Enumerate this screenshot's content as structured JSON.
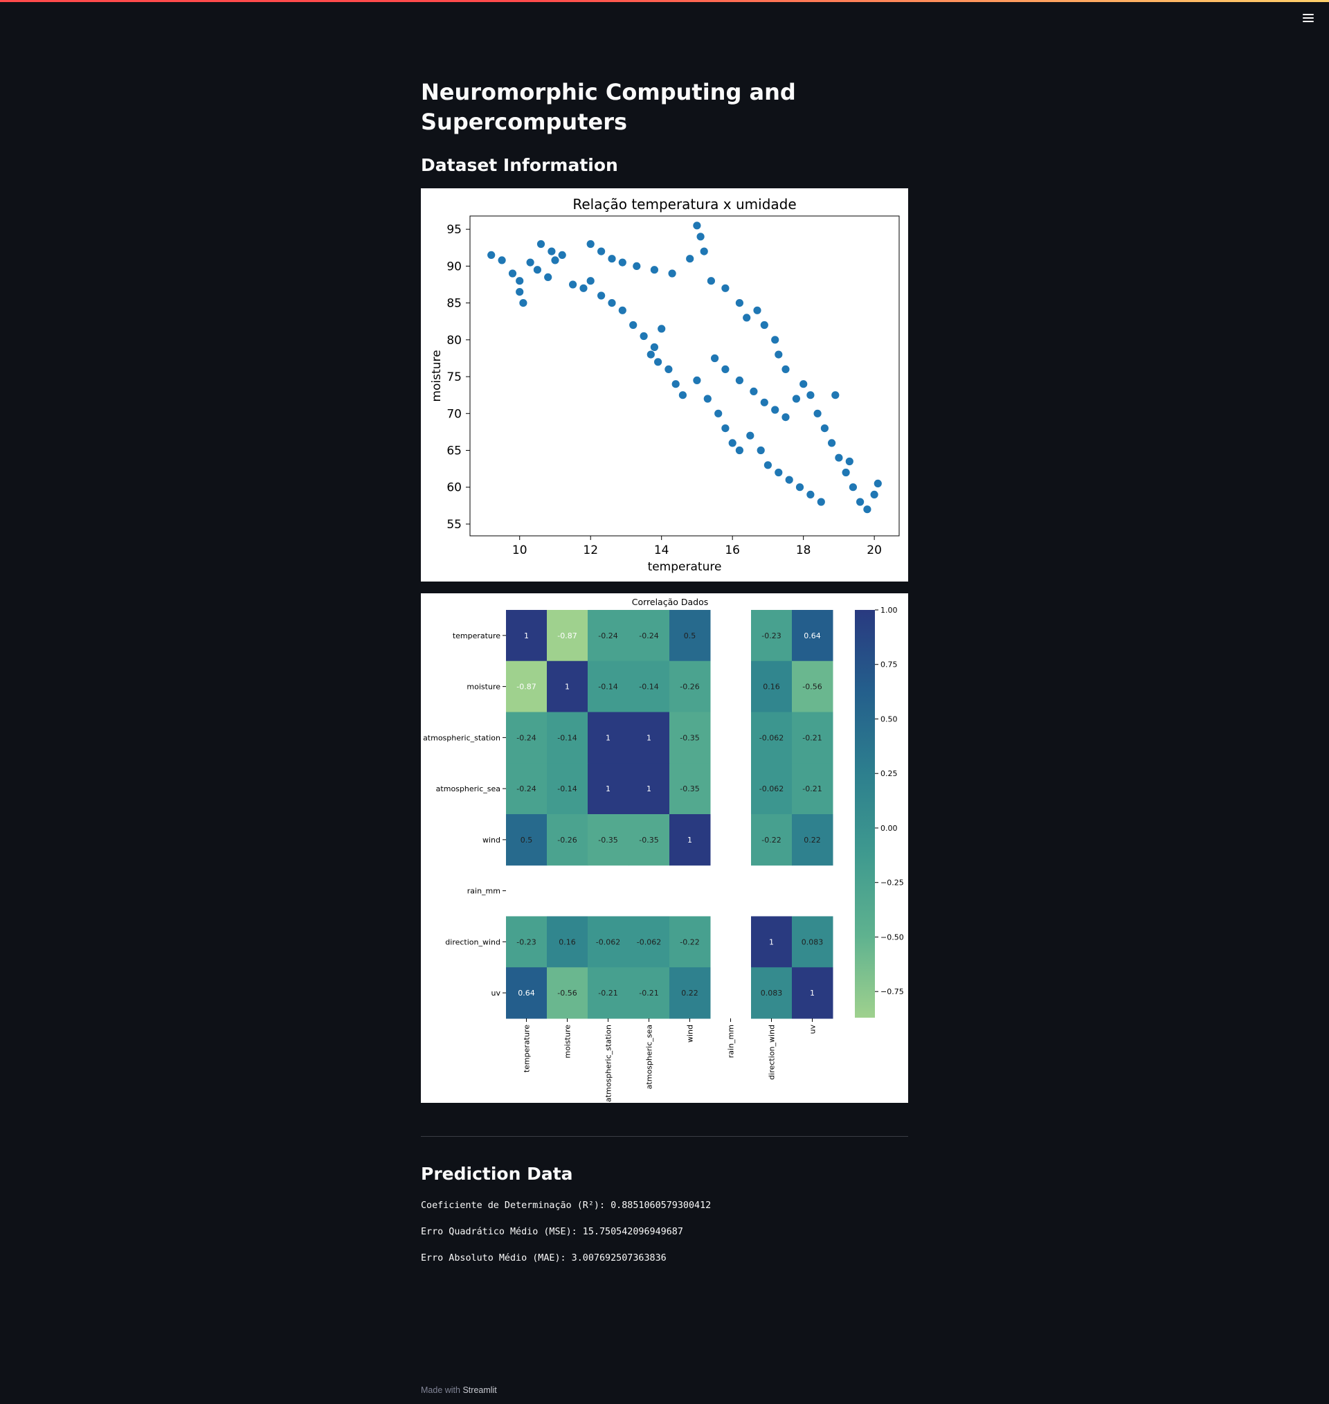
{
  "header": {
    "menu_icon": "hamburger-menu-icon",
    "accent_gradient": [
      "#ff4b4b",
      "#ffd16a"
    ]
  },
  "page": {
    "title": "Neuromorphic Computing and Supercomputers",
    "dataset_heading": "Dataset Information",
    "prediction_heading": "Prediction Data"
  },
  "metrics": {
    "r2": "Coeficiente de Determinação (R²): 0.8851060579300412",
    "mse": "Erro Quadrático Médio (MSE): 15.750542096949687",
    "mae": "Erro Absoluto Médio (MAE): 3.007692507363836"
  },
  "footer": {
    "prefix": "Made with",
    "brand": "Streamlit"
  },
  "chart_data": [
    {
      "type": "scatter",
      "title": "Relação temperatura x umidade",
      "xlabel": "temperature",
      "ylabel": "moisture",
      "xlim": [
        8.6,
        20.7
      ],
      "ylim": [
        53.4,
        96.8
      ],
      "xticks": [
        10,
        12,
        14,
        16,
        18,
        20
      ],
      "yticks": [
        55,
        60,
        65,
        70,
        75,
        80,
        85,
        90,
        95
      ],
      "marker_color": "#1f77b4",
      "grid": false,
      "points": [
        [
          9.2,
          91.5
        ],
        [
          9.5,
          90.8
        ],
        [
          9.8,
          89.0
        ],
        [
          10.0,
          88.0
        ],
        [
          10.0,
          86.5
        ],
        [
          10.1,
          85.0
        ],
        [
          10.3,
          90.5
        ],
        [
          10.5,
          89.5
        ],
        [
          10.8,
          88.5
        ],
        [
          11.0,
          90.8
        ],
        [
          10.6,
          93.0
        ],
        [
          10.9,
          92.0
        ],
        [
          11.2,
          91.5
        ],
        [
          11.5,
          87.5
        ],
        [
          11.8,
          87.0
        ],
        [
          12.0,
          88.0
        ],
        [
          12.3,
          86.0
        ],
        [
          12.6,
          85.0
        ],
        [
          12.9,
          84.0
        ],
        [
          13.2,
          82.0
        ],
        [
          13.5,
          80.5
        ],
        [
          13.8,
          79.0
        ],
        [
          14.0,
          81.5
        ],
        [
          13.7,
          78.0
        ],
        [
          13.9,
          77.0
        ],
        [
          12.0,
          93.0
        ],
        [
          12.3,
          92.0
        ],
        [
          12.6,
          91.0
        ],
        [
          12.9,
          90.5
        ],
        [
          13.3,
          90.0
        ],
        [
          13.8,
          89.5
        ],
        [
          14.3,
          89.0
        ],
        [
          14.8,
          91.0
        ],
        [
          15.0,
          95.5
        ],
        [
          15.1,
          94.0
        ],
        [
          15.2,
          92.0
        ],
        [
          15.4,
          88.0
        ],
        [
          15.8,
          87.0
        ],
        [
          16.2,
          85.0
        ],
        [
          16.4,
          83.0
        ],
        [
          16.7,
          84.0
        ],
        [
          16.9,
          82.0
        ],
        [
          17.2,
          80.0
        ],
        [
          17.3,
          78.0
        ],
        [
          17.5,
          76.0
        ],
        [
          14.2,
          76.0
        ],
        [
          14.4,
          74.0
        ],
        [
          14.6,
          72.5
        ],
        [
          15.0,
          74.5
        ],
        [
          15.3,
          72.0
        ],
        [
          15.6,
          70.0
        ],
        [
          15.8,
          68.0
        ],
        [
          16.0,
          66.0
        ],
        [
          16.2,
          65.0
        ],
        [
          16.5,
          67.0
        ],
        [
          16.8,
          65.0
        ],
        [
          17.0,
          63.0
        ],
        [
          17.3,
          62.0
        ],
        [
          17.6,
          61.0
        ],
        [
          17.9,
          60.0
        ],
        [
          18.2,
          59.0
        ],
        [
          18.5,
          58.0
        ],
        [
          15.5,
          77.5
        ],
        [
          15.8,
          76.0
        ],
        [
          16.2,
          74.5
        ],
        [
          16.6,
          73.0
        ],
        [
          16.9,
          71.5
        ],
        [
          17.2,
          70.5
        ],
        [
          17.5,
          69.5
        ],
        [
          17.8,
          72.0
        ],
        [
          18.0,
          74.0
        ],
        [
          18.2,
          72.5
        ],
        [
          18.4,
          70.0
        ],
        [
          18.6,
          68.0
        ],
        [
          18.8,
          66.0
        ],
        [
          19.0,
          64.0
        ],
        [
          19.2,
          62.0
        ],
        [
          19.4,
          60.0
        ],
        [
          19.6,
          58.0
        ],
        [
          19.8,
          57.0
        ],
        [
          20.0,
          59.0
        ],
        [
          20.1,
          60.5
        ],
        [
          19.3,
          63.5
        ],
        [
          18.9,
          72.5
        ]
      ]
    },
    {
      "type": "heatmap",
      "title": "Correlação Dados",
      "labels": [
        "temperature",
        "moisture",
        "atmospheric_station",
        "atmospheric_sea",
        "wind",
        "rain_mm",
        "direction_wind",
        "uv"
      ],
      "values": [
        [
          1,
          -0.87,
          -0.24,
          -0.24,
          0.5,
          null,
          -0.23,
          0.64
        ],
        [
          -0.87,
          1,
          -0.14,
          -0.14,
          -0.26,
          null,
          0.16,
          -0.56
        ],
        [
          -0.24,
          -0.14,
          1,
          1,
          -0.35,
          null,
          -0.062,
          -0.21
        ],
        [
          -0.24,
          -0.14,
          1,
          1,
          -0.35,
          null,
          -0.062,
          -0.21
        ],
        [
          0.5,
          -0.26,
          -0.35,
          -0.35,
          1,
          null,
          -0.22,
          0.22
        ],
        [
          null,
          null,
          null,
          null,
          null,
          null,
          null,
          null
        ],
        [
          -0.23,
          0.16,
          -0.062,
          -0.062,
          -0.22,
          null,
          1,
          0.083
        ],
        [
          0.64,
          -0.56,
          -0.21,
          -0.21,
          0.22,
          null,
          0.083,
          1
        ]
      ],
      "colorbar": {
        "min": -0.87,
        "max": 1.0,
        "ticks": [
          "1.00",
          "0.75",
          "0.50",
          "0.25",
          "0.00",
          "−0.25",
          "−0.50",
          "−0.75"
        ]
      },
      "colormap": "crest",
      "colormap_stops": [
        "#9fd18e",
        "#5fb28f",
        "#3f9a8f",
        "#2d7f8e",
        "#245f8c",
        "#293a80"
      ]
    }
  ]
}
